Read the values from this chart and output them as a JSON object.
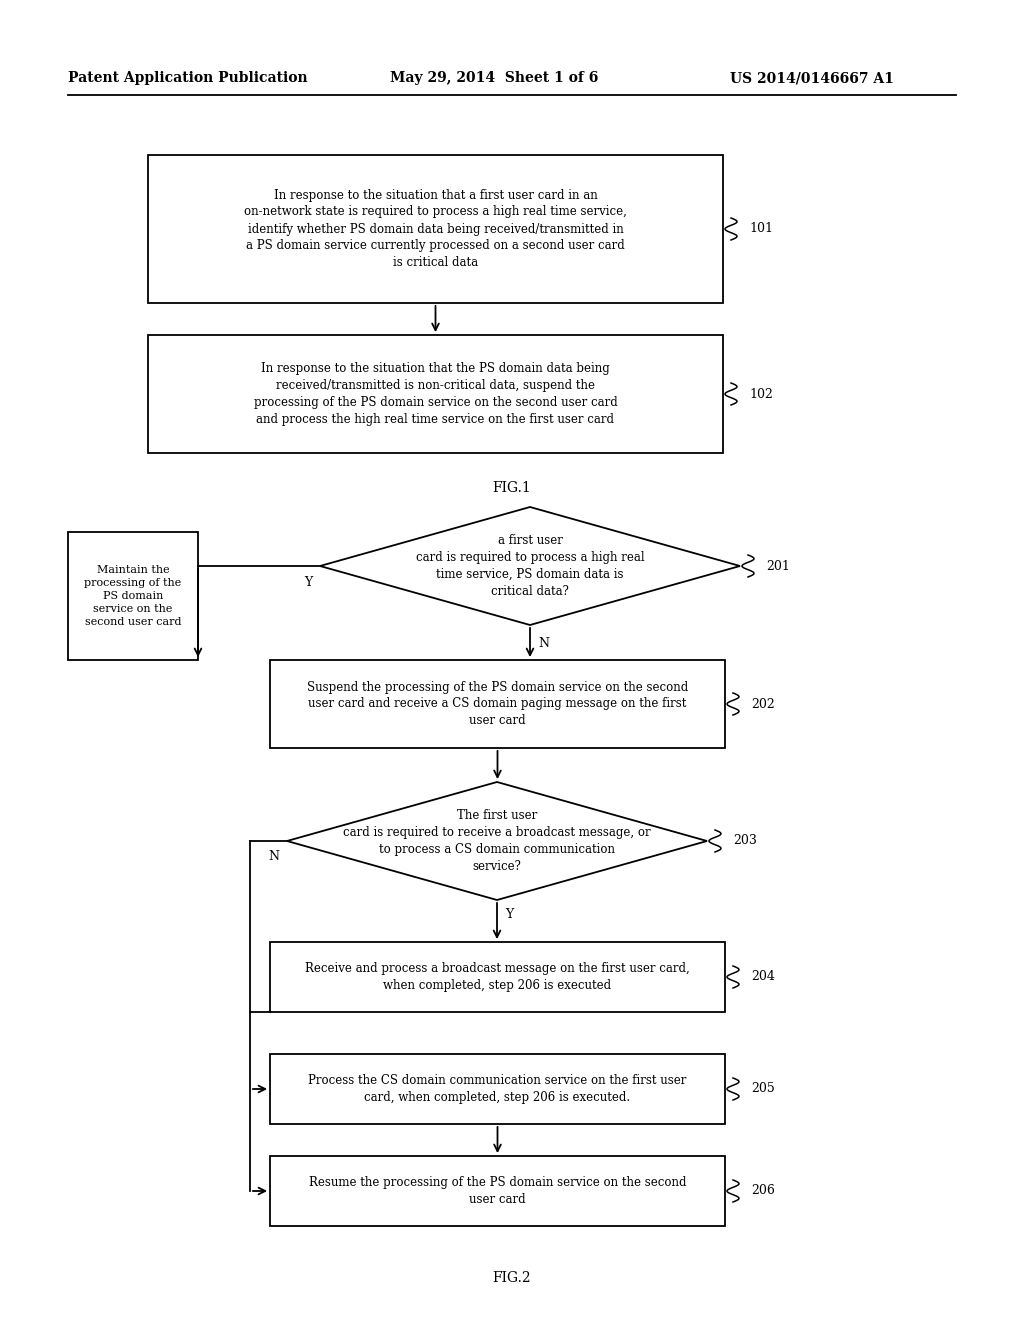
{
  "bg_color": "#ffffff",
  "header_left": "Patent Application Publication",
  "header_mid": "May 29, 2014  Sheet 1 of 6",
  "header_right": "US 2014/0146667 A1",
  "fig1_label": "FIG.1",
  "fig2_label": "FIG.2",
  "box101_text": "In response to the situation that a first user card in an\non-network state is required to process a high real time service,\nidentify whether PS domain data being received/transmitted in\na PS domain service currently processed on a second user card\nis critical data",
  "box101_ref": "101",
  "box102_text": "In response to the situation that the PS domain data being\nreceived/transmitted is non-critical data, suspend the\nprocessing of the PS domain service on the second user card\nand process the high real time service on the first user card",
  "box102_ref": "102",
  "diamond201_text": "a first user\ncard is required to process a high real\ntime service, PS domain data is\ncritical data?",
  "diamond201_ref": "201",
  "box_maintain_text": "Maintain the\nprocessing of the\nPS domain\nservice on the\nsecond user card",
  "box202_text": "Suspend the processing of the PS domain service on the second\nuser card and receive a CS domain paging message on the first\nuser card",
  "box202_ref": "202",
  "diamond203_text": "The first user\ncard is required to receive a broadcast message, or\nto process a CS domain communication\nservice?",
  "diamond203_ref": "203",
  "box204_text": "Receive and process a broadcast message on the first user card,\nwhen completed, step 206 is executed",
  "box204_ref": "204",
  "box205_text": "Process the CS domain communication service on the first user\ncard, when completed, step 206 is executed.",
  "box205_ref": "205",
  "box206_text": "Resume the processing of the PS domain service on the second\nuser card",
  "box206_ref": "206"
}
